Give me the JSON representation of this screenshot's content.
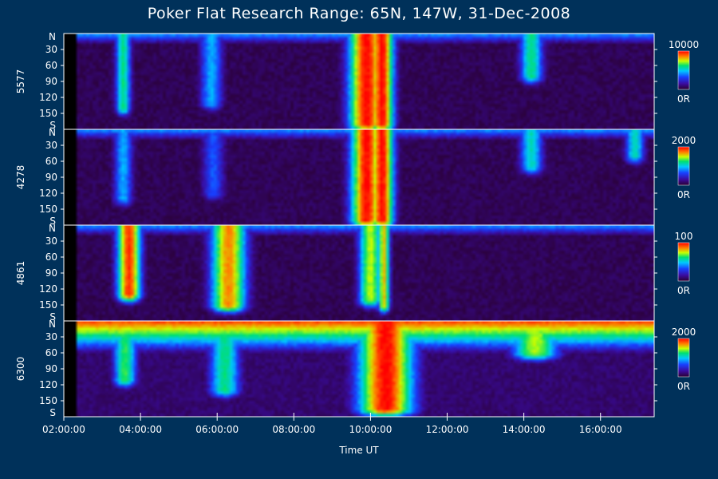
{
  "chart_data": {
    "type": "heatmap",
    "title": "Poker Flat Research Range: 65N, 147W, 31-Dec-2008",
    "xlabel": "Time UT",
    "x_ticks": [
      "02:00:00",
      "04:00:00",
      "06:00:00",
      "08:00:00",
      "10:00:00",
      "12:00:00",
      "14:00:00",
      "16:00:00"
    ],
    "x_tick_hours": [
      2,
      4,
      6,
      8,
      10,
      12,
      14,
      16
    ],
    "x_range_hours": [
      2,
      17.4
    ],
    "y_axis": {
      "top_label": "N",
      "bottom_label": "S",
      "ticks": [
        "30",
        "60",
        "90",
        "120",
        "150"
      ],
      "tick_values": [
        30,
        60,
        90,
        120,
        150
      ],
      "range": [
        0,
        180
      ]
    },
    "panels": [
      {
        "wavelength": "5577",
        "colorbar_max": "10000",
        "colorbar_min": "0R",
        "features": [
          {
            "hour": 3.55,
            "depth": 140,
            "intensity": 0.55,
            "spread": 0.2
          },
          {
            "hour": 5.85,
            "depth": 130,
            "intensity": 0.4,
            "spread": 0.3
          },
          {
            "hour": 9.9,
            "depth": 170,
            "intensity": 1.0,
            "spread": 0.45
          },
          {
            "hour": 10.3,
            "depth": 170,
            "intensity": 1.0,
            "spread": 0.3
          },
          {
            "hour": 14.2,
            "depth": 80,
            "intensity": 0.55,
            "spread": 0.3
          }
        ]
      },
      {
        "wavelength": "4278",
        "colorbar_max": "2000",
        "colorbar_min": "0R",
        "features": [
          {
            "hour": 3.55,
            "depth": 130,
            "intensity": 0.4,
            "spread": 0.25
          },
          {
            "hour": 5.9,
            "depth": 120,
            "intensity": 0.3,
            "spread": 0.3
          },
          {
            "hour": 9.9,
            "depth": 170,
            "intensity": 1.0,
            "spread": 0.4
          },
          {
            "hour": 10.3,
            "depth": 170,
            "intensity": 1.0,
            "spread": 0.3
          },
          {
            "hour": 14.2,
            "depth": 70,
            "intensity": 0.5,
            "spread": 0.3
          },
          {
            "hour": 16.9,
            "depth": 50,
            "intensity": 0.5,
            "spread": 0.25
          }
        ]
      },
      {
        "wavelength": "4861",
        "colorbar_max": "100",
        "colorbar_min": "0R",
        "features": [
          {
            "hour": 3.7,
            "depth": 130,
            "intensity": 0.95,
            "spread": 0.3
          },
          {
            "hour": 6.3,
            "depth": 150,
            "intensity": 0.85,
            "spread": 0.45
          },
          {
            "hour": 10.0,
            "depth": 140,
            "intensity": 0.7,
            "spread": 0.3
          },
          {
            "hour": 10.35,
            "depth": 150,
            "intensity": 0.8,
            "spread": 0.15
          }
        ]
      },
      {
        "wavelength": "6300",
        "colorbar_max": "2000",
        "colorbar_min": "0R",
        "features": [
          {
            "hour": 3.6,
            "depth": 110,
            "intensity": 0.6,
            "spread": 0.3
          },
          {
            "hour": 6.2,
            "depth": 130,
            "intensity": 0.55,
            "spread": 0.4
          },
          {
            "hour": 10.4,
            "depth": 165,
            "intensity": 1.0,
            "spread": 0.7
          },
          {
            "hour": 14.3,
            "depth": 60,
            "intensity": 0.7,
            "spread": 0.6
          }
        ]
      }
    ],
    "colors": {
      "background": "#00315a",
      "colormap": [
        "#2a0030",
        "#3a0ca0",
        "#1840ff",
        "#00c8ff",
        "#00e070",
        "#c8ff00",
        "#ff8000",
        "#ff0000"
      ]
    },
    "grid": false,
    "legend": "colorbars-right"
  }
}
